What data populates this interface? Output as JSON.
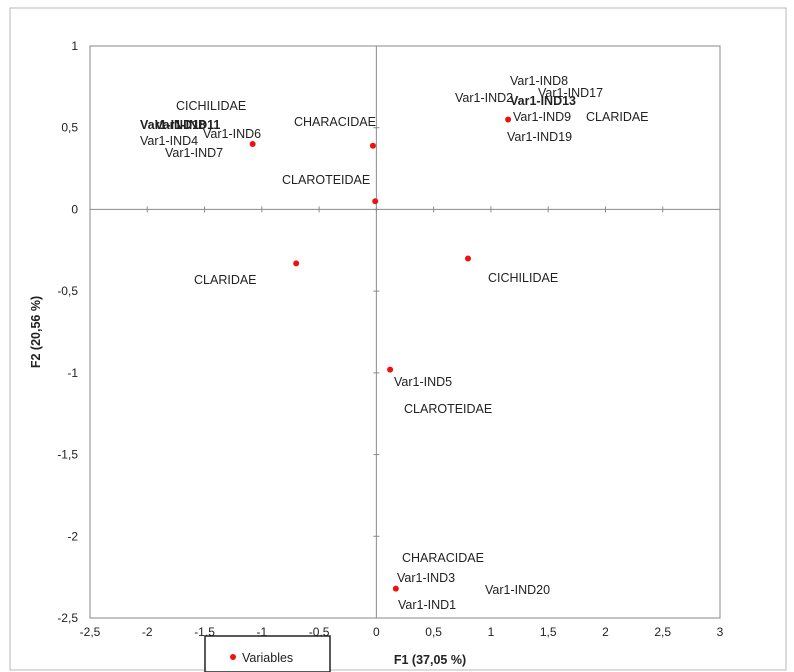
{
  "chart_data": {
    "type": "scatter",
    "xlabel": "F1 (37,05 %)",
    "ylabel": "F2 (20,56 %)",
    "xlim": [
      -2.5,
      3
    ],
    "ylim": [
      -2.5,
      1
    ],
    "x_ticks": [
      "-2,5",
      "-2",
      "-1,5",
      "-1",
      "-0,5",
      "0",
      "0,5",
      "1",
      "1,5",
      "2",
      "2,5",
      "3"
    ],
    "y_ticks": [
      "1",
      "0,5",
      "0",
      "-0,5",
      "-1",
      "-1,5",
      "-2",
      "-2,5"
    ],
    "grid": false,
    "legend": {
      "position": "bottom-left",
      "entries": [
        "Variables"
      ]
    },
    "series": [
      {
        "name": "Variables",
        "color": "#ee1111",
        "points": [
          {
            "x": -1.08,
            "y": 0.4
          },
          {
            "x": -0.03,
            "y": 0.39
          },
          {
            "x": -0.01,
            "y": 0.05
          },
          {
            "x": 1.15,
            "y": 0.55
          },
          {
            "x": -0.7,
            "y": -0.33
          },
          {
            "x": 0.8,
            "y": -0.3
          },
          {
            "x": 0.12,
            "y": -0.98
          },
          {
            "x": 0.17,
            "y": -2.32
          }
        ]
      }
    ],
    "labels": [
      {
        "text": "CICHILIDAE",
        "bold": false
      },
      {
        "text": "Var1-IND18",
        "bold": true
      },
      {
        "text": "Var1-IND11",
        "bold": true
      },
      {
        "text": "Var1-IND6",
        "bold": false
      },
      {
        "text": "Var1-IND4",
        "bold": false
      },
      {
        "text": "Var1-IND7",
        "bold": false
      },
      {
        "text": "CHARACIDAE",
        "bold": false
      },
      {
        "text": "CLAROTEIDAE",
        "bold": false
      },
      {
        "text": "Var1-IND8",
        "bold": false
      },
      {
        "text": "Var1-IND2",
        "bold": false
      },
      {
        "text": "Var1-IND17",
        "bold": false
      },
      {
        "text": "Var1-IND13",
        "bold": true
      },
      {
        "text": "Var1-IND9",
        "bold": false
      },
      {
        "text": "CLARIDAE",
        "bold": false
      },
      {
        "text": "Var1-IND19",
        "bold": false
      },
      {
        "text": "CLARIDAE",
        "bold": false
      },
      {
        "text": "CICHILIDAE",
        "bold": false
      },
      {
        "text": "Var1-IND5",
        "bold": false
      },
      {
        "text": "CLAROTEIDAE",
        "bold": false
      },
      {
        "text": "CHARACIDAE",
        "bold": false
      },
      {
        "text": "Var1-IND3",
        "bold": false
      },
      {
        "text": "Var1-IND20",
        "bold": false
      },
      {
        "text": "Var1-IND1",
        "bold": false
      }
    ]
  }
}
